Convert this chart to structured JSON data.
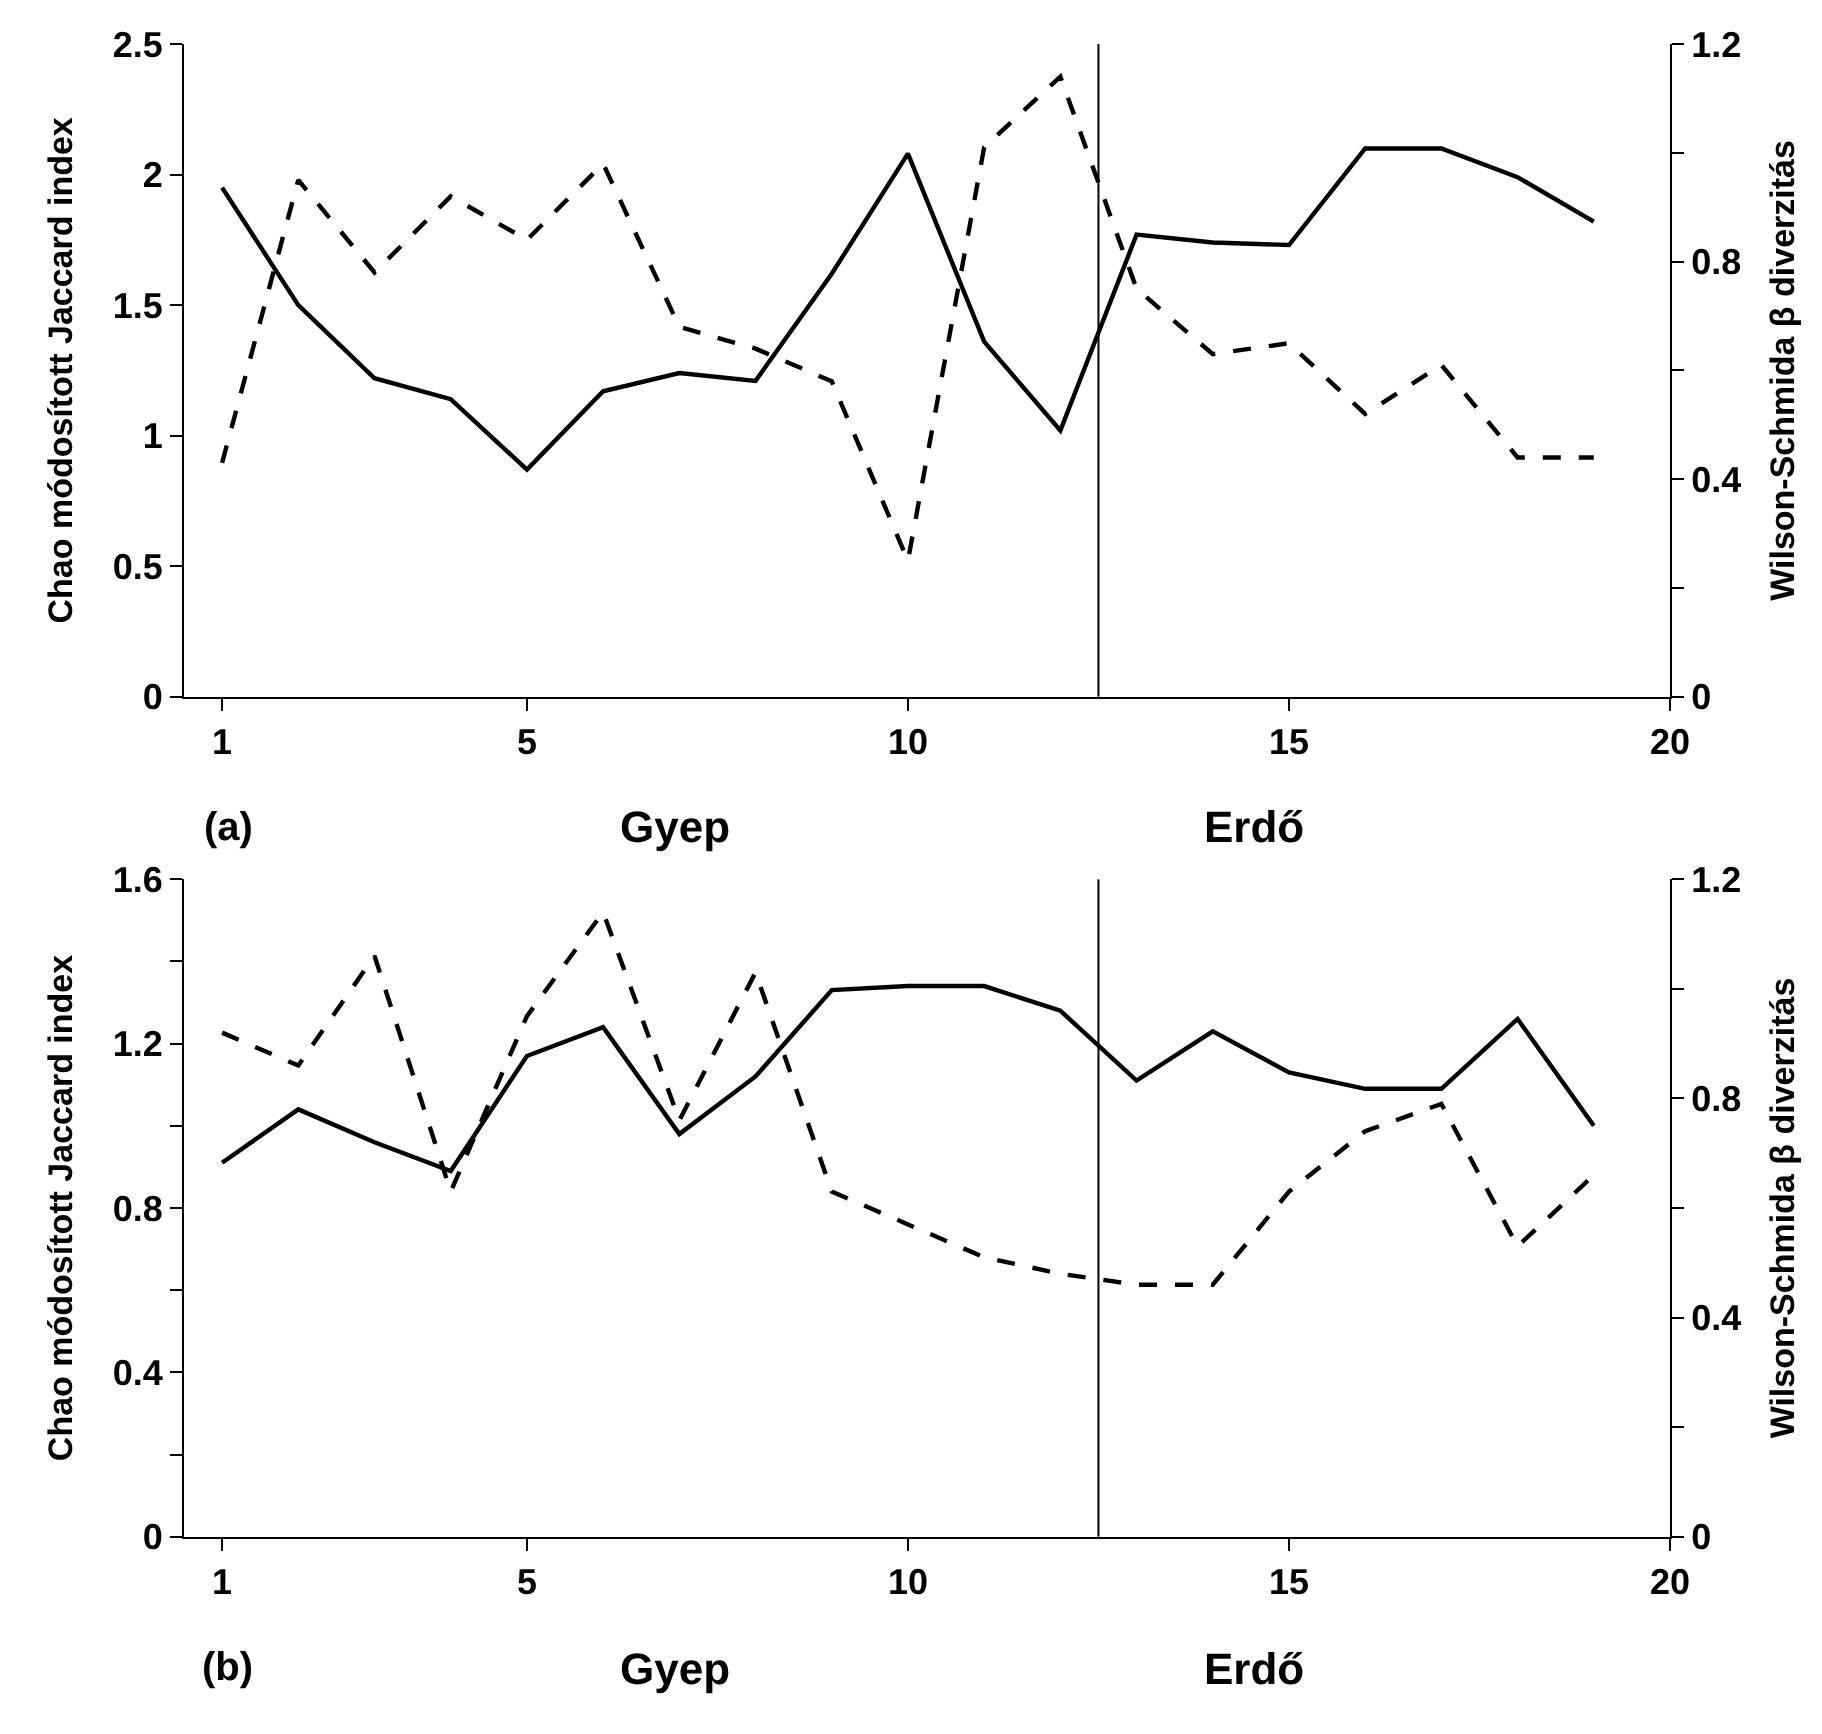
{
  "chart_data": [
    {
      "type": "line",
      "x": [
        1,
        2,
        3,
        4,
        5,
        6,
        7,
        8,
        9,
        10,
        11,
        12,
        13,
        14,
        15,
        16,
        17,
        18,
        19
      ],
      "xlim": [
        0.5,
        20
      ],
      "xticks": [
        1,
        5,
        10,
        15,
        20
      ],
      "ylabel": "Chao módosított Jaccard index",
      "y2label": "Wilson-Schmida β diverzitás",
      "ylim": [
        0,
        2.5
      ],
      "yticks": [
        0,
        0.5,
        1,
        1.5,
        2,
        2.5
      ],
      "y2lim": [
        0,
        1.2
      ],
      "y2ticks": [
        0,
        {
          "value": 0.2,
          "label": null
        },
        0.4,
        {
          "value": 0.6,
          "label": null
        },
        0.8,
        {
          "value": 1.0,
          "label": null
        },
        1.2
      ],
      "series": [
        {
          "color": "#000000",
          "line_style": "solid",
          "values": [
            1.95,
            1.5,
            1.22,
            1.14,
            0.87,
            1.17,
            1.24,
            1.21,
            1.62,
            2.08,
            1.36,
            1.02,
            1.77,
            1.74,
            1.73,
            2.1,
            2.1,
            1.99,
            1.82
          ]
        },
        {
          "color": "#000000",
          "line_style": "dashed",
          "axis": "y2",
          "values": [
            0.43,
            0.95,
            0.78,
            0.92,
            0.84,
            0.98,
            0.68,
            0.64,
            0.58,
            0.25,
            1.01,
            1.14,
            0.75,
            0.63,
            0.65,
            0.52,
            0.61,
            0.44,
            0.44
          ]
        }
      ],
      "ref_lines": [
        {
          "axis": "x",
          "value": 12.5,
          "color": "#000000"
        }
      ],
      "annotations": [
        "(a)",
        "Gyep",
        "Erdő"
      ],
      "marker": "none"
    },
    {
      "type": "line",
      "x": [
        1,
        2,
        3,
        4,
        5,
        6,
        7,
        8,
        9,
        10,
        11,
        12,
        13,
        14,
        15,
        16,
        17,
        18,
        19
      ],
      "xlim": [
        0.5,
        20
      ],
      "xticks": [
        1,
        5,
        10,
        15,
        20
      ],
      "ylabel": "Chao módosított Jaccard index",
      "y2label": "Wilson-Schmida β diverzitás",
      "ylim": [
        0,
        1.6
      ],
      "yticks": [
        0,
        {
          "value": 0.2,
          "label": null
        },
        0.4,
        {
          "value": 0.6,
          "label": null
        },
        0.8,
        {
          "value": 1.0,
          "label": null
        },
        1.2,
        {
          "value": 1.4,
          "label": null
        },
        1.6
      ],
      "y2lim": [
        0,
        1.2
      ],
      "y2ticks": [
        0,
        {
          "value": 0.2,
          "label": null
        },
        0.4,
        {
          "value": 0.6,
          "label": null
        },
        0.8,
        {
          "value": 1.0,
          "label": null
        },
        1.2
      ],
      "series": [
        {
          "color": "#000000",
          "line_style": "solid",
          "values": [
            0.91,
            1.04,
            0.96,
            0.89,
            1.17,
            1.24,
            0.98,
            1.12,
            1.33,
            1.34,
            1.34,
            1.28,
            1.11,
            1.23,
            1.13,
            1.09,
            1.09,
            1.26,
            1.0
          ]
        },
        {
          "color": "#000000",
          "line_style": "dashed",
          "axis": "y2",
          "values": [
            0.92,
            0.86,
            1.06,
            0.63,
            0.95,
            1.14,
            0.76,
            1.03,
            0.63,
            0.57,
            0.51,
            0.48,
            0.46,
            0.46,
            0.63,
            0.74,
            0.79,
            0.53,
            0.66
          ]
        }
      ],
      "ref_lines": [
        {
          "axis": "x",
          "value": 12.5,
          "color": "#000000"
        }
      ],
      "annotations": [
        "(b)",
        "Gyep",
        "Erdő"
      ],
      "marker": "none"
    }
  ]
}
